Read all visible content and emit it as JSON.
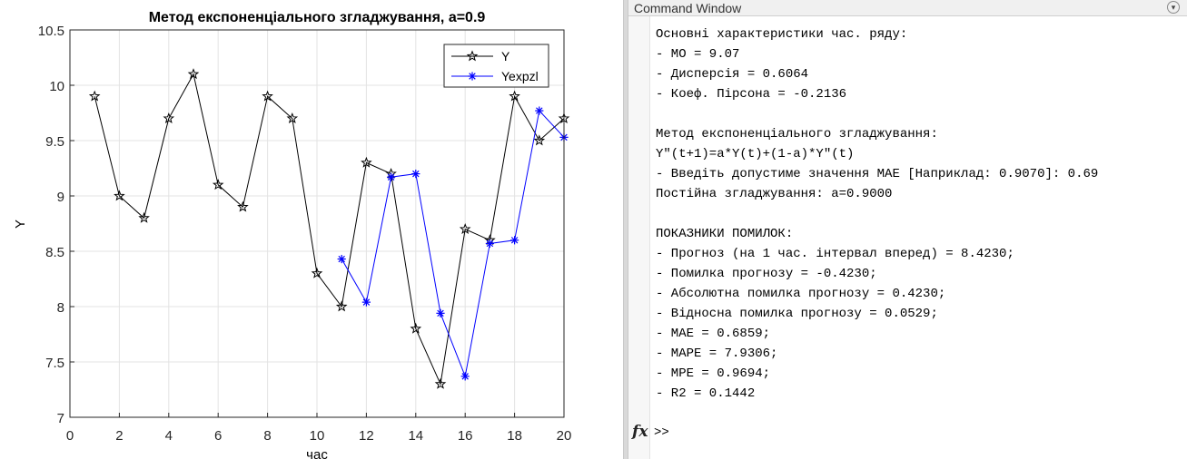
{
  "figure": {
    "chart_data": {
      "type": "line",
      "title": "Метод експоненціального згладжування, a=0.9",
      "xlabel": "час",
      "ylabel": "Y",
      "xlim": [
        0,
        20
      ],
      "ylim": [
        7,
        10.5
      ],
      "x_ticks": [
        0,
        2,
        4,
        6,
        8,
        10,
        12,
        14,
        16,
        18,
        20
      ],
      "y_ticks": [
        7,
        7.5,
        8,
        8.5,
        9,
        9.5,
        10,
        10.5
      ],
      "y_tick_labels": [
        "7",
        "7.5",
        "8",
        "8.5",
        "9",
        "9.5",
        "10",
        "10.5"
      ],
      "grid": true,
      "legend_position": "top-right",
      "series": [
        {
          "name": "Y",
          "color": "#000000",
          "marker": "pentagram",
          "x": [
            1,
            2,
            3,
            4,
            5,
            6,
            7,
            8,
            9,
            10,
            11,
            12,
            13,
            14,
            15,
            16,
            17,
            18,
            19,
            20
          ],
          "y": [
            9.9,
            9.0,
            8.8,
            9.7,
            10.1,
            9.1,
            8.9,
            9.9,
            9.7,
            8.3,
            8.0,
            9.3,
            9.2,
            7.8,
            7.3,
            8.7,
            8.6,
            9.9,
            9.5,
            9.7
          ]
        },
        {
          "name": "Yexpzl",
          "color": "#0000ff",
          "marker": "asterisk",
          "x": [
            11,
            12,
            13,
            14,
            15,
            16,
            17,
            18,
            19,
            20
          ],
          "y": [
            8.43,
            8.04,
            9.17,
            9.2,
            7.94,
            7.37,
            8.57,
            8.6,
            9.77,
            9.53
          ]
        }
      ]
    }
  },
  "command_window": {
    "title": "Command Window",
    "lines": [
      "Основні характеристики час. ряду:",
      "- МО = 9.07",
      "- Дисперсія = 0.6064",
      "- Коеф. Пірсона = -0.2136",
      "",
      "Метод експоненціального згладжування:",
      "Y\"(t+1)=a*Y(t)+(1-a)*Y\"(t)",
      "- Введіть допустиме значення МАЕ [Наприклад: 0.9070]: 0.69",
      "Постійна згладжування: a=0.9000",
      "",
      "ПОКАЗНИКИ ПОМИЛОК:",
      "- Прогноз (на 1 час. інтервал вперед) = 8.4230;",
      "- Помилка прогнозу = -0.4230;",
      "- Абсолютна помилка прогнозу = 0.4230;",
      "- Відносна помилка прогнозу = 0.0529;",
      "- MAE = 0.6859;",
      "- MAPE = 7.9306;",
      "- MPE = 0.9694;",
      "- R2 = 0.1442"
    ],
    "prompt": ">>",
    "fx_icon": "fx"
  }
}
